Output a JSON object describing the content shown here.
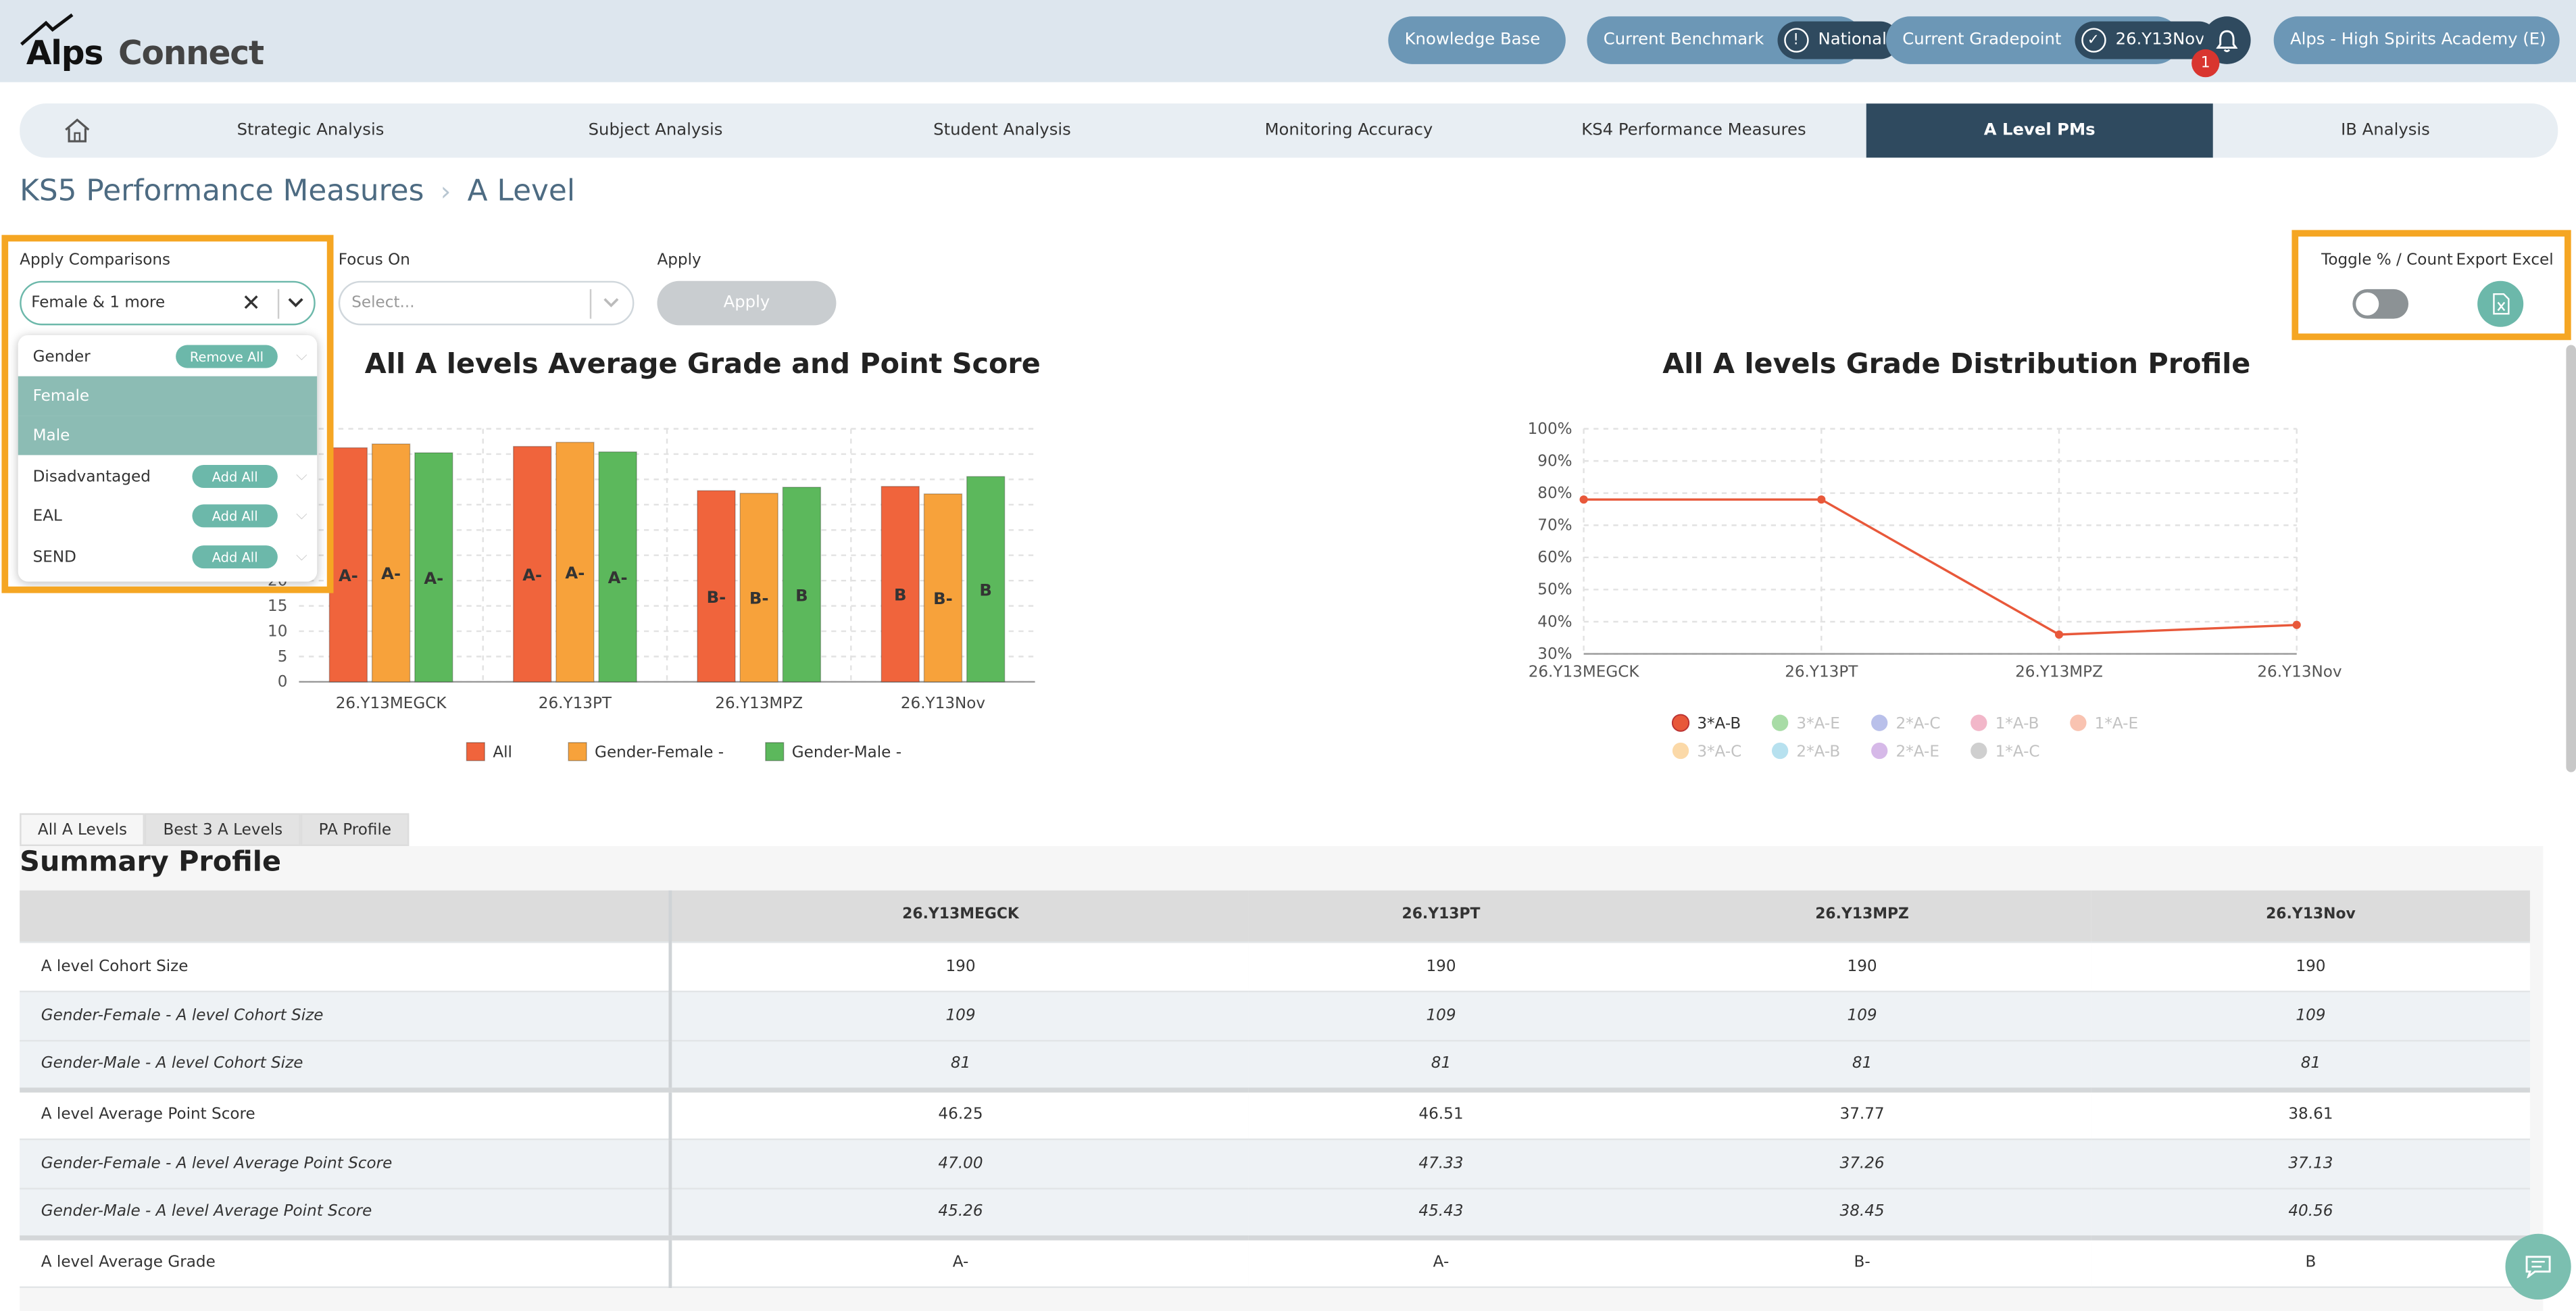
{
  "header": {
    "logo_alps": "Alps",
    "logo_connect": "Connect",
    "knowledge_base": "Knowledge Base",
    "benchmark_label": "Current Benchmark",
    "benchmark_value": "National",
    "gradepoint_label": "Current Gradepoint",
    "gradepoint_value": "26.Y13Nov",
    "notification_count": "1",
    "school": "Alps - High Spirits Academy (E)"
  },
  "nav": {
    "items": [
      "Strategic Analysis",
      "Subject Analysis",
      "Student Analysis",
      "Monitoring Accuracy",
      "KS4 Performance Measures",
      "A Level PMs",
      "IB Analysis"
    ],
    "active": "A Level PMs"
  },
  "breadcrumb": {
    "parent": "KS5 Performance Measures",
    "current": "A Level"
  },
  "filters": {
    "comparisons_label": "Apply Comparisons",
    "comparisons_value": "Female & 1 more",
    "focus_label": "Focus On",
    "focus_placeholder": "Select...",
    "apply_label": "Apply",
    "apply_button": "Apply",
    "toggle_label": "Toggle % / Count",
    "export_label": "Export Excel"
  },
  "dropdown": {
    "groups": [
      {
        "label": "Gender",
        "action": "Remove All"
      },
      {
        "label": "Female",
        "selected": true
      },
      {
        "label": "Male",
        "selected": true
      },
      {
        "label": "Disadvantaged",
        "action": "Add All"
      },
      {
        "label": "EAL",
        "action": "Add All"
      },
      {
        "label": "SEND",
        "action": "Add All"
      }
    ]
  },
  "chart_data": [
    {
      "type": "bar",
      "title": "All A levels Average Grade and Point Score",
      "categories": [
        "26.Y13MEGCK",
        "26.Y13PT",
        "26.Y13MPZ",
        "26.Y13Nov"
      ],
      "series": [
        {
          "name": "All",
          "color": "#f0643c",
          "values": [
            46.25,
            46.51,
            37.77,
            38.61
          ],
          "labels": [
            "A-",
            "A-",
            "B-",
            "B"
          ]
        },
        {
          "name": "Gender-Female -",
          "color": "#f7a23b",
          "values": [
            47.0,
            47.33,
            37.26,
            37.13
          ],
          "labels": [
            "A-",
            "A-",
            "B-",
            "B-"
          ]
        },
        {
          "name": "Gender-Male -",
          "color": "#5cb85c",
          "values": [
            45.26,
            45.43,
            38.45,
            40.56
          ],
          "labels": [
            "A-",
            "A-",
            "B",
            "B"
          ]
        }
      ],
      "y_ticks_visible": [
        0,
        5,
        10,
        15,
        20
      ],
      "ylim": [
        0,
        50
      ],
      "legend": "bottom"
    },
    {
      "type": "line",
      "title": "All A levels Grade Distribution Profile",
      "x": [
        "26.Y13MEGCK",
        "26.Y13PT",
        "26.Y13MPZ",
        "26.Y13Nov"
      ],
      "y_ticks": [
        "30%",
        "40%",
        "50%",
        "60%",
        "70%",
        "80%",
        "90%",
        "100%"
      ],
      "ylim": [
        30,
        100
      ],
      "series": [
        {
          "name": "3*A-B",
          "color": "#e8583a",
          "values": [
            78,
            78,
            36,
            39
          ],
          "active": true
        },
        {
          "name": "3*A-E",
          "color": "#a8dca6",
          "active": false
        },
        {
          "name": "2*A-C",
          "color": "#b9c0ea",
          "active": false
        },
        {
          "name": "1*A-B",
          "color": "#f2b7c9",
          "active": false
        },
        {
          "name": "1*A-E",
          "color": "#f9c3b1",
          "active": false
        },
        {
          "name": "3*A-C",
          "color": "#fbd9a8",
          "active": false
        },
        {
          "name": "2*A-B",
          "color": "#b7e1ef",
          "active": false
        },
        {
          "name": "2*A-E",
          "color": "#d6b9e8",
          "active": false
        },
        {
          "name": "1*A-C",
          "color": "#cfcfcf",
          "active": false
        }
      ],
      "legend": "bottom"
    }
  ],
  "tabs": [
    "All A Levels",
    "Best 3 A Levels",
    "PA Profile"
  ],
  "summary": {
    "title": "Summary Profile",
    "columns": [
      "26.Y13MEGCK",
      "26.Y13PT",
      "26.Y13MPZ",
      "26.Y13Nov"
    ],
    "rows": [
      {
        "label": "A level Cohort Size",
        "values": [
          "190",
          "190",
          "190",
          "190"
        ]
      },
      {
        "label": "Gender-Female - A level Cohort Size",
        "values": [
          "109",
          "109",
          "109",
          "109"
        ]
      },
      {
        "label": "Gender-Male - A level Cohort Size",
        "values": [
          "81",
          "81",
          "81",
          "81"
        ]
      },
      {
        "label": "A level Average Point Score",
        "values": [
          "46.25",
          "46.51",
          "37.77",
          "38.61"
        ]
      },
      {
        "label": "Gender-Female - A level Average Point Score",
        "values": [
          "47.00",
          "47.33",
          "37.26",
          "37.13"
        ]
      },
      {
        "label": "Gender-Male - A level Average Point Score",
        "values": [
          "45.26",
          "45.43",
          "38.45",
          "40.56"
        ]
      },
      {
        "label": "A level Average Grade",
        "values": [
          "A-",
          "A-",
          "B-",
          "B"
        ]
      }
    ]
  }
}
